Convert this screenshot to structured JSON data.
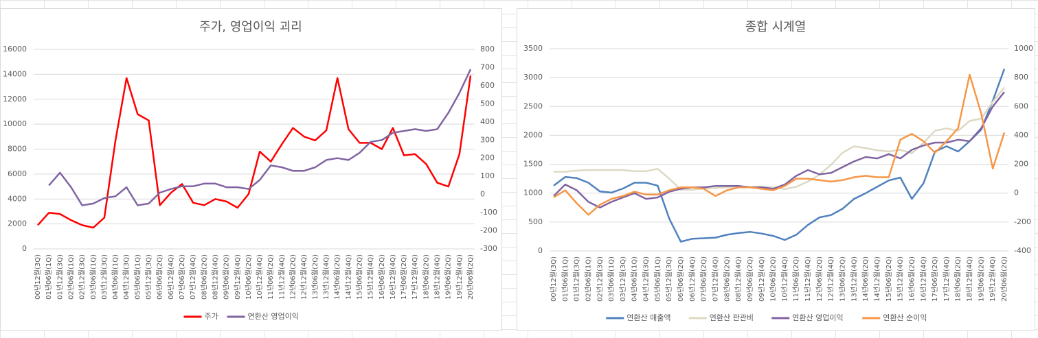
{
  "chart_data": [
    {
      "type": "line",
      "title": "주가, 영업이익 괴리",
      "categories": [
        "00년12월(3Q)",
        "01년06월(1Q)",
        "01년12월(3Q)",
        "02년06월(1Q)",
        "02년12월(3Q)",
        "03년06월(1Q)",
        "03년12월(3Q)",
        "04년06월(1Q)",
        "04년12월(3Q)",
        "05년06월(1Q)",
        "05년12월(3Q)",
        "06년06월(2Q)",
        "06년12월(4Q)",
        "07년06월(2Q)",
        "07년12월(4Q)",
        "08년06월(2Q)",
        "08년12월(4Q)",
        "09년06월(2Q)",
        "09년12월(4Q)",
        "10년06월(2Q)",
        "10년12월(4Q)",
        "11년06월(2Q)",
        "11년12월(4Q)",
        "12년06월(2Q)",
        "12년12월(4Q)",
        "13년06월(2Q)",
        "13년12월(4Q)",
        "14년06월(2Q)",
        "14년12월(4Q)",
        "15년06월(2Q)",
        "15년12월(4Q)",
        "16년06월(2Q)",
        "16년12월(4Q)",
        "17년06월(2Q)",
        "17년12월(4Q)",
        "18년06월(2Q)",
        "18년12월(4Q)",
        "19년06월(2Q)",
        "19년12월(4Q)",
        "20년06월(2Q)"
      ],
      "series": [
        {
          "name": "주가",
          "color": "#ff0000",
          "axis": "y",
          "values": [
            1900,
            2900,
            2800,
            2300,
            1900,
            1700,
            2500,
            8700,
            13700,
            10800,
            10300,
            3500,
            4500,
            5200,
            3700,
            3500,
            4000,
            3800,
            3300,
            4400,
            7800,
            7000,
            8400,
            9700,
            9000,
            8700,
            9500,
            13700,
            9600,
            8500,
            8500,
            8000,
            9700,
            7500,
            7600,
            6800,
            5300,
            5000,
            7600,
            13900
          ]
        },
        {
          "name": "연환산 영업이익",
          "color": "#8064a2",
          "axis": "y2",
          "values": [
            null,
            50,
            120,
            40,
            -60,
            -50,
            -20,
            -10,
            40,
            -60,
            -50,
            10,
            30,
            45,
            45,
            60,
            60,
            40,
            40,
            30,
            80,
            160,
            150,
            130,
            130,
            150,
            190,
            200,
            190,
            230,
            290,
            300,
            340,
            350,
            360,
            350,
            360,
            450,
            560,
            690
          ]
        }
      ],
      "ylim": [
        0,
        16000
      ],
      "yticks": [
        0,
        2000,
        4000,
        6000,
        8000,
        10000,
        12000,
        14000,
        16000
      ],
      "y2lim": [
        -300,
        800
      ],
      "y2ticks": [
        -300,
        -200,
        -100,
        0,
        100,
        200,
        300,
        400,
        500,
        600,
        700,
        800
      ],
      "grid": true,
      "legend": "bottom"
    },
    {
      "type": "line",
      "title": "종합 시계열",
      "categories": [
        "00년12월(3Q)",
        "01년06월(1Q)",
        "01년12월(3Q)",
        "02년06월(1Q)",
        "02년12월(3Q)",
        "03년06월(1Q)",
        "03년12월(3Q)",
        "04년06월(1Q)",
        "04년12월(3Q)",
        "05년06월(1Q)",
        "05년12월(3Q)",
        "06년06월(2Q)",
        "06년12월(4Q)",
        "07년06월(2Q)",
        "07년12월(4Q)",
        "08년06월(2Q)",
        "08년12월(4Q)",
        "09년06월(2Q)",
        "09년12월(4Q)",
        "10년06월(2Q)",
        "10년12월(4Q)",
        "11년06월(2Q)",
        "11년12월(4Q)",
        "12년06월(2Q)",
        "12년12월(4Q)",
        "13년06월(2Q)",
        "13년12월(4Q)",
        "14년06월(2Q)",
        "14년12월(4Q)",
        "15년06월(2Q)",
        "15년12월(4Q)",
        "16년06월(2Q)",
        "16년12월(4Q)",
        "17년06월(2Q)",
        "17년12월(4Q)",
        "18년06월(2Q)",
        "18년12월(4Q)",
        "19년06월(2Q)",
        "19년12월(4Q)",
        "20년06월(2Q)"
      ],
      "series": [
        {
          "name": "연환산 매출액",
          "color": "#4f81bd",
          "axis": "y",
          "values": [
            1130,
            1280,
            1260,
            1180,
            1030,
            1010,
            1080,
            1180,
            1180,
            1130,
            560,
            160,
            210,
            220,
            230,
            280,
            310,
            330,
            300,
            260,
            190,
            280,
            450,
            580,
            620,
            730,
            900,
            1000,
            1110,
            1220,
            1270,
            900,
            1170,
            1720,
            1810,
            1720,
            1900,
            2100,
            2600,
            3150
          ]
        },
        {
          "name": "연환산 판관비",
          "color": "#ddd9c3",
          "axis": "y",
          "values": [
            1370,
            1370,
            1390,
            1400,
            1400,
            1400,
            1400,
            1380,
            1380,
            1420,
            1250,
            1060,
            1060,
            1080,
            1090,
            1100,
            1110,
            1110,
            1110,
            1100,
            1070,
            1110,
            1200,
            1320,
            1490,
            1700,
            1810,
            1780,
            1740,
            1720,
            1750,
            1690,
            1870,
            2080,
            2120,
            2080,
            2250,
            2290,
            2580,
            2830
          ]
        },
        {
          "name": "연환산 영업이익",
          "color": "#8064a2",
          "axis": "y2",
          "values": [
            -20,
            60,
            20,
            -60,
            -100,
            -60,
            -30,
            0,
            -40,
            -30,
            10,
            30,
            40,
            40,
            50,
            50,
            50,
            40,
            40,
            30,
            60,
            120,
            160,
            130,
            140,
            180,
            220,
            250,
            240,
            270,
            240,
            300,
            330,
            350,
            350,
            370,
            360,
            450,
            600,
            700
          ]
        },
        {
          "name": "연환산 순이익",
          "color": "#f79646",
          "axis": "y2",
          "values": [
            -30,
            20,
            -70,
            -150,
            -80,
            -40,
            -20,
            10,
            -10,
            -10,
            20,
            40,
            40,
            30,
            -20,
            20,
            40,
            40,
            30,
            20,
            50,
            100,
            100,
            90,
            80,
            90,
            110,
            120,
            110,
            110,
            370,
            410,
            360,
            280,
            360,
            450,
            820,
            550,
            170,
            420
          ]
        }
      ],
      "ylim": [
        0,
        3500
      ],
      "yticks": [
        0,
        500,
        1000,
        1500,
        2000,
        2500,
        3000,
        3500
      ],
      "y2lim": [
        -400,
        1000
      ],
      "y2ticks": [
        -400,
        -200,
        0,
        200,
        400,
        600,
        800,
        1000
      ],
      "grid": true,
      "legend": "bottom"
    }
  ]
}
